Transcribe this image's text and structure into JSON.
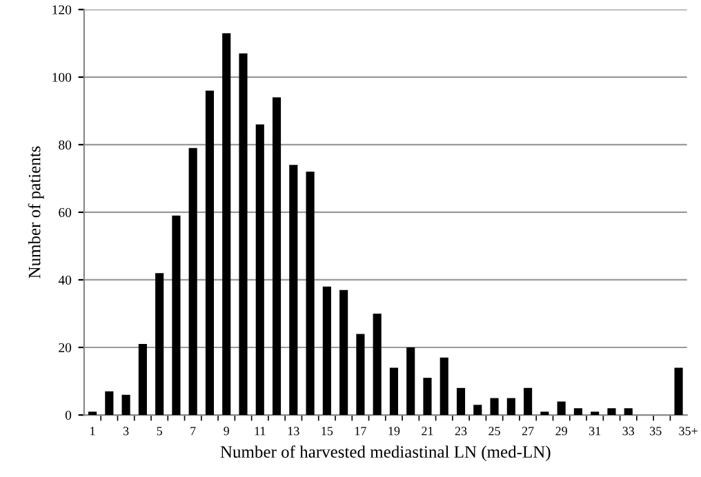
{
  "chart_data": {
    "type": "bar",
    "xlabel": "Number of harvested mediastinal LN (med-LN)",
    "ylabel": "Number of patients",
    "categories": [
      "1",
      null,
      "3",
      null,
      "5",
      null,
      "7",
      null,
      "9",
      null,
      "11",
      null,
      "13",
      null,
      "15",
      null,
      "17",
      null,
      "19",
      null,
      "21",
      null,
      "23",
      null,
      "25",
      null,
      "27",
      null,
      "29",
      null,
      "31",
      null,
      "33",
      null,
      "35",
      "35+"
    ],
    "values": [
      1,
      7,
      6,
      21,
      42,
      59,
      79,
      96,
      113,
      107,
      86,
      94,
      74,
      72,
      38,
      37,
      24,
      30,
      14,
      20,
      11,
      17,
      8,
      3,
      5,
      5,
      8,
      1,
      4,
      2,
      1,
      2,
      2,
      0,
      0,
      14
    ],
    "color": "#000000",
    "ylim": [
      0,
      120
    ],
    "yticks": [
      0,
      20,
      40,
      60,
      80,
      100,
      120
    ],
    "grid": "y",
    "legend": false
  }
}
